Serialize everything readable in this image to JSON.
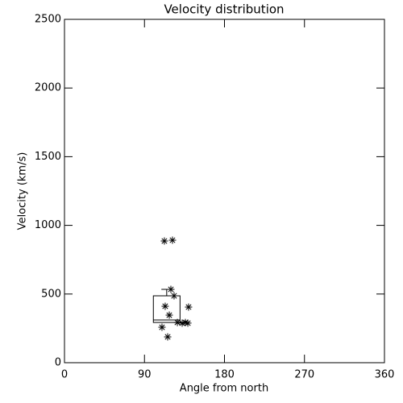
{
  "chart_data": {
    "type": "scatter",
    "title": "Velocity distribution",
    "x_label": "Angle from north",
    "y_label": "Velocity (km/s)",
    "x": [
      112.4,
      121.5,
      119.7,
      123.3,
      113.3,
      139.6,
      117.9,
      127,
      132.4,
      136,
      138.8,
      109.7,
      116.1
    ],
    "y": [
      886,
      892,
      534,
      487,
      411,
      405,
      346,
      293,
      288,
      293,
      288,
      258,
      188
    ],
    "color": "#000000",
    "box": {
      "x_left": 100,
      "x_right": 130,
      "q1": 293,
      "median": 311,
      "q3": 487,
      "whisker_high": 534,
      "cap_left": 109,
      "cap_right": 121
    },
    "xlim": [
      0,
      360
    ],
    "xticks": [
      0,
      90,
      180,
      270,
      360
    ],
    "ylim": [
      0,
      2500
    ],
    "yticks": [
      0,
      500,
      1000,
      1500,
      2000,
      2500
    ]
  }
}
